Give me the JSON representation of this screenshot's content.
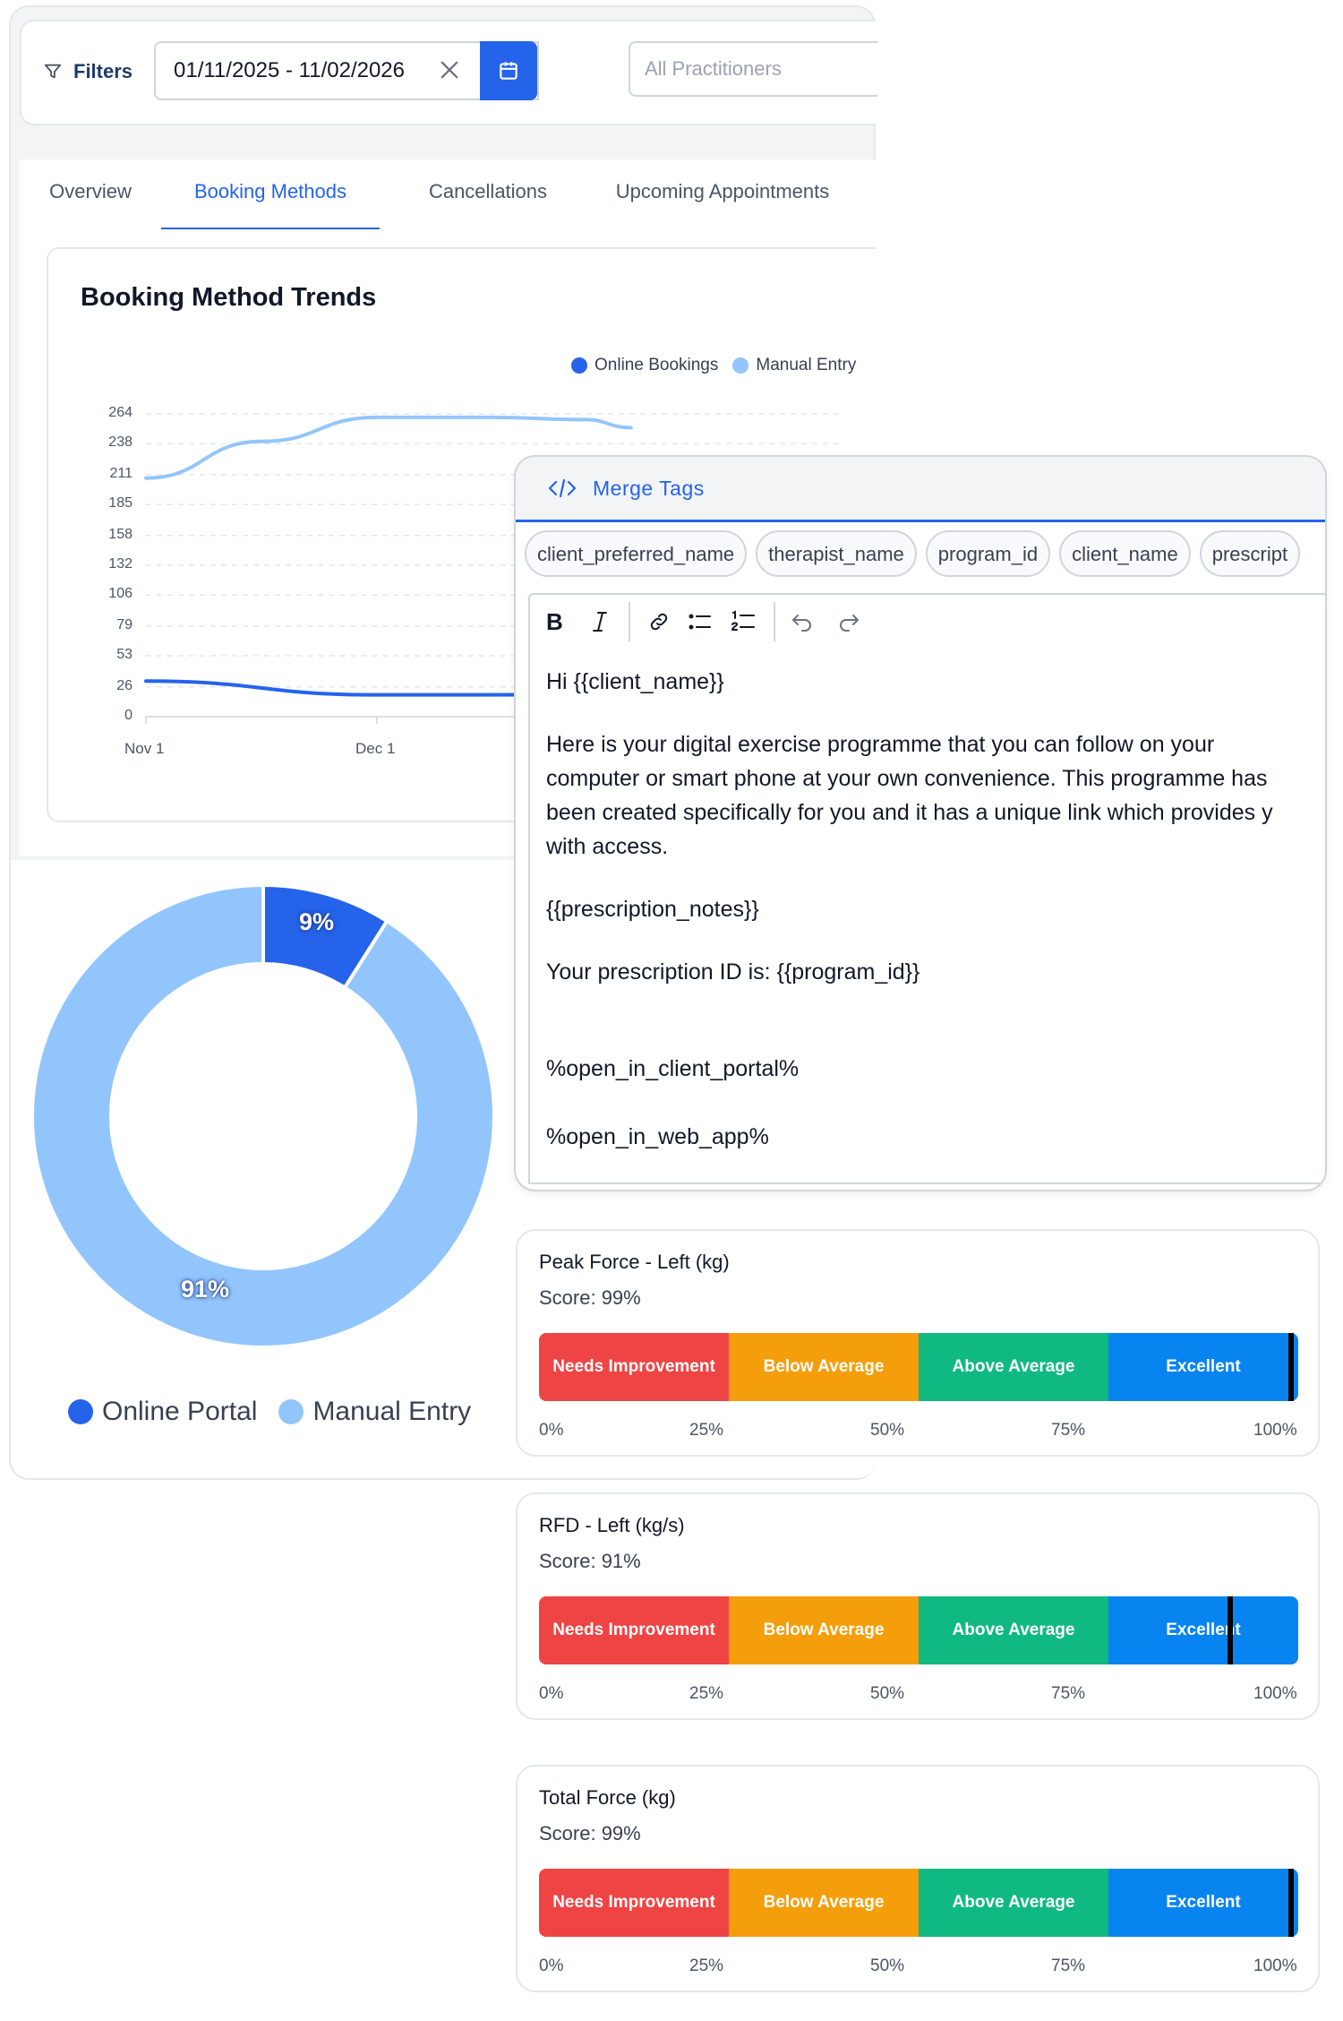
{
  "filters": {
    "label": "Filters",
    "date_range": "01/11/2025 - 11/02/2026",
    "practitioner_placeholder": "All Practitioners"
  },
  "tabs": [
    {
      "label": "Overview"
    },
    {
      "label": "Booking Methods",
      "active": true
    },
    {
      "label": "Cancellations"
    },
    {
      "label": "Upcoming Appointments"
    }
  ],
  "trend": {
    "title": "Booking Method Trends",
    "legend": [
      "Online Bookings",
      "Manual Entry"
    ],
    "colors": {
      "online": "#2563eb",
      "manual": "#93c5fd"
    }
  },
  "donut": {
    "legend": [
      "Online Portal",
      "Manual Entry"
    ],
    "labels": [
      "9%",
      "91%"
    ]
  },
  "chart_data": [
    {
      "type": "line",
      "title": "Booking Method Trends",
      "y_ticks": [
        "264",
        "238",
        "211",
        "185",
        "158",
        "132",
        "106",
        "79",
        "53",
        "26",
        "0"
      ],
      "x_ticks": [
        "Nov 1",
        "Dec 1"
      ],
      "ylim": [
        0,
        264
      ],
      "grid": true,
      "legend_position": "top-right",
      "series": [
        {
          "name": "Manual Entry",
          "color": "#93c5fd",
          "x": [
            "Nov 1",
            "Nov 16",
            "Dec 1",
            "Dec 16",
            "Dec 28",
            "Jan 3"
          ],
          "values": [
            208,
            240,
            261,
            261,
            259,
            252
          ]
        },
        {
          "name": "Online Bookings",
          "color": "#2563eb",
          "x": [
            "Nov 1",
            "Dec 1",
            "Dec 16",
            "Jan 3"
          ],
          "values": [
            31,
            19,
            19,
            20
          ]
        }
      ]
    },
    {
      "type": "pie",
      "categories": [
        "Online Portal",
        "Manual Entry"
      ],
      "values": [
        9,
        91
      ],
      "colors": [
        "#2563eb",
        "#93c5fd"
      ]
    }
  ],
  "merge": {
    "title": "Merge Tags",
    "chips": [
      "client_preferred_name",
      "therapist_name",
      "program_id",
      "client_name",
      "prescript"
    ],
    "editor_lines": [
      "Hi {{client_name}}",
      "Here is your digital exercise programme that you can follow on your",
      "computer or smart phone at your own convenience. This programme has",
      "been created specifically for you and it has a unique link which provides y",
      "with access.",
      "{{prescription_notes}}",
      "Your prescription ID is: {{program_id}}",
      "%open_in_client_portal%",
      "%open_in_web_app%"
    ]
  },
  "score_segments": [
    "Needs Improvement",
    "Below Average",
    "Above Average",
    "Excellent"
  ],
  "score_scale": [
    "0%",
    "25%",
    "50%",
    "75%",
    "100%"
  ],
  "scores": [
    {
      "title": "Peak Force - Left (kg)",
      "score": "Score: 99%",
      "value": 99
    },
    {
      "title": "RFD - Left (kg/s)",
      "score": "Score: 91%",
      "value": 91
    },
    {
      "title": "Total Force (kg)",
      "score": "Score: 99%",
      "value": 99
    }
  ]
}
